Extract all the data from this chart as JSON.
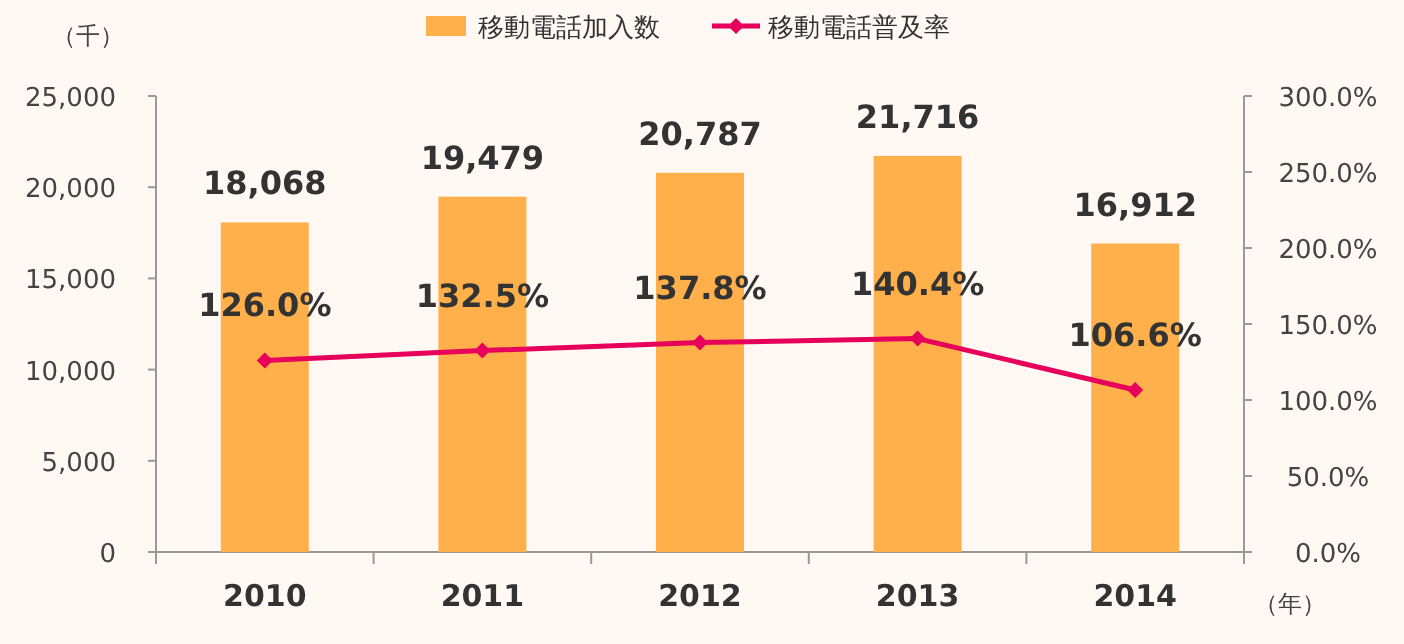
{
  "chart_data": {
    "type": "bar",
    "ylabel": "（千）",
    "xlabel": "（年）",
    "categories": [
      "2010",
      "2011",
      "2012",
      "2013",
      "2014"
    ],
    "series": [
      {
        "name": "移動電話加入数",
        "color": "#ffb04a",
        "values": [
          18068,
          19479,
          20787,
          21716,
          16912
        ],
        "value_labels": [
          "18,068",
          "19,479",
          "20,787",
          "21,716",
          "16,912"
        ]
      },
      {
        "name": "移動電話普及率",
        "type": "line",
        "axis": "y2",
        "color": "#e6005c",
        "marker": "diamond",
        "values": [
          126.0,
          132.5,
          137.8,
          140.4,
          106.6
        ],
        "value_labels": [
          "126.0%",
          "132.5%",
          "137.8%",
          "140.4%",
          "106.6%"
        ]
      }
    ],
    "ylim": [
      0,
      25000
    ],
    "yticks": [
      {
        "value": 0,
        "label": "0"
      },
      {
        "value": 5000,
        "label": "5,000"
      },
      {
        "value": 10000,
        "label": "10,000"
      },
      {
        "value": 15000,
        "label": "15,000"
      },
      {
        "value": 20000,
        "label": "20,000"
      },
      {
        "value": 25000,
        "label": "25,000"
      }
    ],
    "y2lim": [
      0,
      300
    ],
    "y2ticks": [
      {
        "value": 0,
        "label": "0.0%"
      },
      {
        "value": 50,
        "label": "50.0%"
      },
      {
        "value": 100,
        "label": "100.0%"
      },
      {
        "value": 150,
        "label": "150.0%"
      },
      {
        "value": 200,
        "label": "200.0%"
      },
      {
        "value": 250,
        "label": "250.0%"
      },
      {
        "value": 300,
        "label": "300.0%"
      }
    ],
    "legend": "top",
    "grid": false
  }
}
